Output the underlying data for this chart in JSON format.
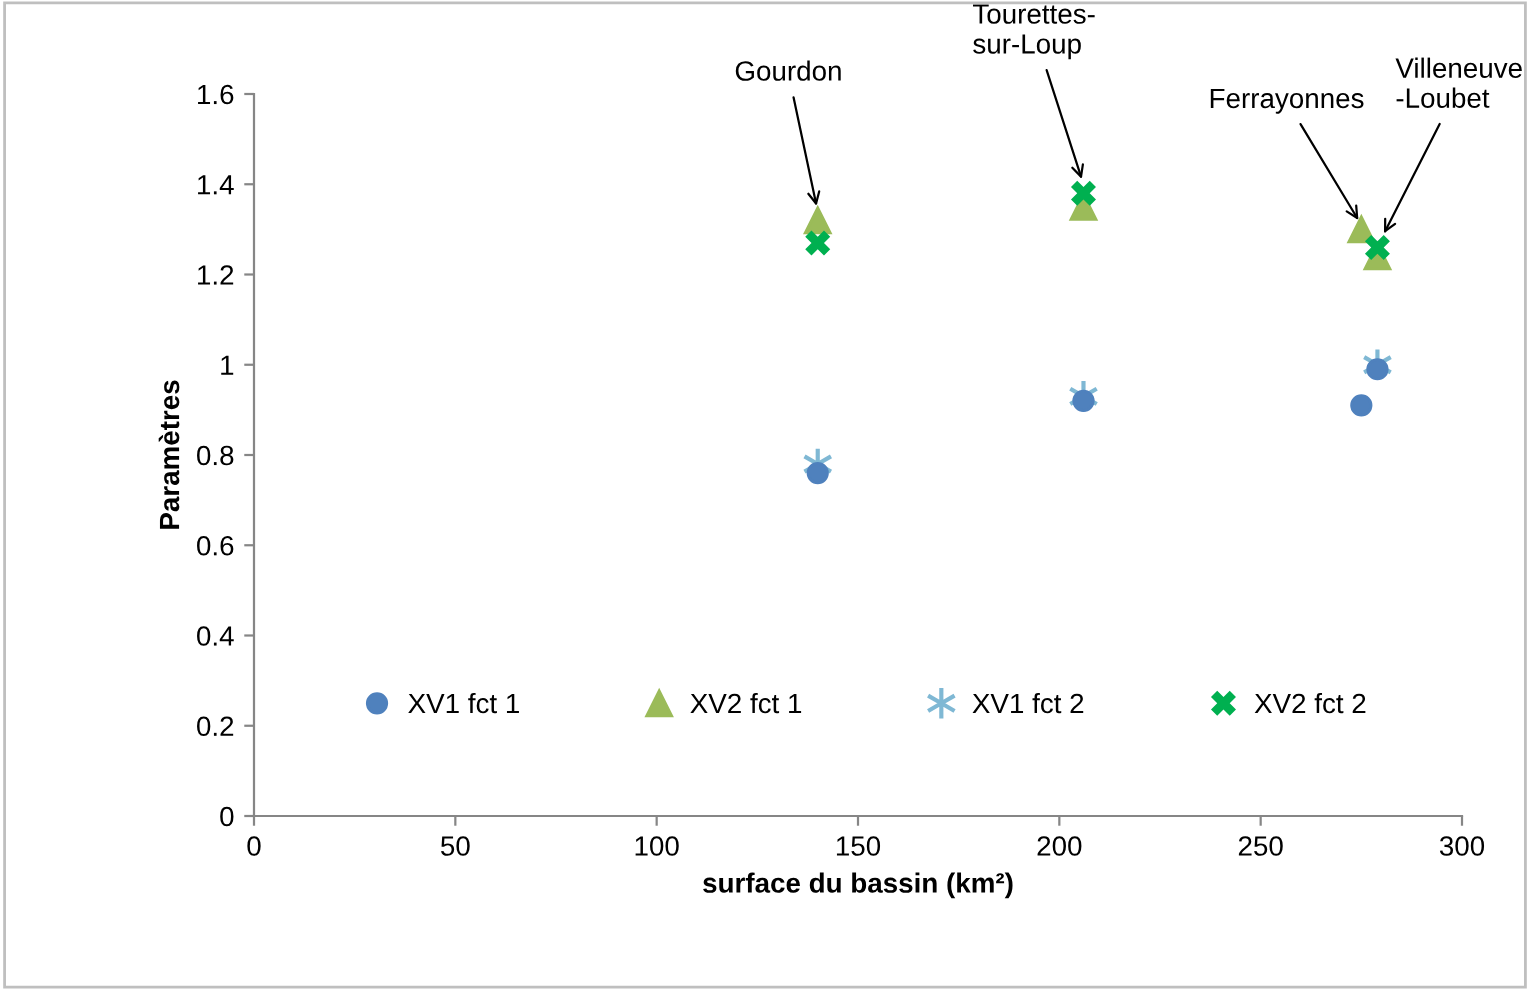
{
  "chart_data": {
    "type": "scatter",
    "xlabel": "surface du bassin (km²)",
    "ylabel": "Paramètres",
    "xlim": [
      0,
      300
    ],
    "xticks": [
      0,
      50,
      100,
      150,
      200,
      250,
      300
    ],
    "ylim": [
      0,
      1.6
    ],
    "yticks": [
      0,
      0.2,
      0.4,
      0.6,
      0.8,
      1,
      1.2,
      1.4,
      1.6
    ],
    "grid": false,
    "legend": "bottom",
    "series": [
      {
        "name": "XV1 fct 1",
        "color": "#4f81bd",
        "marker": "circle",
        "x": [
          140,
          206,
          275,
          279
        ],
        "values": [
          0.76,
          0.92,
          0.91,
          0.99
        ]
      },
      {
        "name": "XV2 fct 1",
        "color": "#9bbb59",
        "marker": "triangle",
        "x": [
          140,
          206,
          275,
          279
        ],
        "values": [
          1.32,
          1.35,
          1.3,
          1.24
        ]
      },
      {
        "name": "XV1 fct 2",
        "color": "#7fb8d4",
        "marker": "cross",
        "x": [
          140,
          206,
          275,
          279
        ],
        "values": [
          0.78,
          0.93,
          null,
          1.0
        ]
      },
      {
        "name": "XV2 fct 2",
        "color": "#00b050",
        "marker": "cross",
        "x": [
          140,
          206,
          275,
          279
        ],
        "values": [
          1.27,
          1.38,
          null,
          1.26
        ]
      }
    ],
    "annotations": [
      {
        "text": "Gourdon",
        "x": 140,
        "y": 1.34
      },
      {
        "text": "Tourettes-\nsur-Loup",
        "x": 206,
        "y": 1.4
      },
      {
        "text": "Ferrayonnes",
        "x": 275,
        "y": 1.31
      },
      {
        "text": "Villeneuve\n-Loubet",
        "x": 280,
        "y": 1.28
      }
    ]
  }
}
